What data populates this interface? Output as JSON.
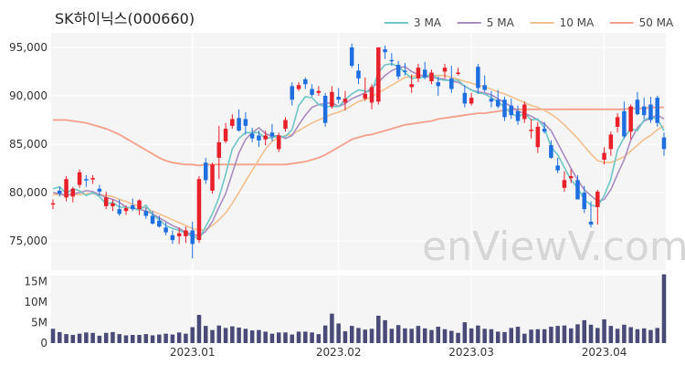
{
  "chart_data": {
    "type": "candlestick",
    "title": "SK하이닉스(000660)",
    "watermark": "enViewV.com",
    "colors": {
      "up": "#e8202a",
      "down": "#1f6fe0",
      "volume": "#4a4a78",
      "panel_bg": "#f5f5f5"
    },
    "legend": [
      {
        "name": "3 MA",
        "color": "#6fc6c6"
      },
      {
        "name": "5 MA",
        "color": "#a98cc0"
      },
      {
        "name": "10 MA",
        "color": "#f2c08e"
      },
      {
        "name": "50 MA",
        "color": "#f4a08a"
      }
    ],
    "price_axis": {
      "ticks": [
        "95,000",
        "90,000",
        "85,000",
        "80,000",
        "75,000"
      ],
      "values": [
        95000,
        90000,
        85000,
        80000,
        75000
      ],
      "range": [
        72000,
        96500
      ]
    },
    "volume_axis": {
      "ticks": [
        "15M",
        "10M",
        "5M",
        "0"
      ],
      "values": [
        15000000,
        10000000,
        5000000,
        0
      ],
      "range": [
        0,
        16500000
      ]
    },
    "x_ticks": [
      {
        "label": "2023.01",
        "index": 21
      },
      {
        "label": "2023.02",
        "index": 43
      },
      {
        "label": "2023.03",
        "index": 63
      },
      {
        "label": "2023.04",
        "index": 83
      }
    ],
    "candles": [
      [
        78800,
        79300,
        78300,
        78900,
        3500000
      ],
      [
        80200,
        80600,
        79600,
        79900,
        2700000
      ],
      [
        79500,
        81700,
        79100,
        81400,
        2200000
      ],
      [
        79600,
        80600,
        79000,
        80400,
        2000000
      ],
      [
        80800,
        82400,
        80500,
        82100,
        2300000
      ],
      [
        81400,
        81800,
        80600,
        81300,
        2600000
      ],
      [
        81400,
        81800,
        80900,
        81500,
        2500000
      ],
      [
        80400,
        80800,
        79700,
        80100,
        1800000
      ],
      [
        78600,
        80100,
        78300,
        79500,
        2500000
      ],
      [
        78600,
        79300,
        78100,
        78900,
        2700000
      ],
      [
        78300,
        79300,
        77600,
        77800,
        2200000
      ],
      [
        78100,
        78700,
        77700,
        78400,
        1900000
      ],
      [
        78700,
        79400,
        78100,
        78300,
        2000000
      ],
      [
        78300,
        79300,
        77700,
        79200,
        2000000
      ],
      [
        78100,
        78500,
        77300,
        77600,
        2200000
      ],
      [
        77600,
        78100,
        76700,
        76800,
        1900000
      ],
      [
        77100,
        77600,
        76400,
        76500,
        2100000
      ],
      [
        76400,
        76900,
        75600,
        75900,
        2300000
      ],
      [
        75600,
        76100,
        74700,
        75100,
        2100000
      ],
      [
        75500,
        76400,
        74700,
        75800,
        2600000
      ],
      [
        75500,
        76500,
        74800,
        76100,
        2300000
      ],
      [
        76100,
        77000,
        73200,
        74700,
        3900000
      ],
      [
        75100,
        81700,
        74800,
        81400,
        6900000
      ],
      [
        83100,
        83600,
        80900,
        81300,
        4200000
      ],
      [
        80200,
        83100,
        79900,
        82900,
        3200000
      ],
      [
        83600,
        86900,
        81400,
        85200,
        4300000
      ],
      [
        85300,
        87200,
        85100,
        86600,
        3700000
      ],
      [
        86900,
        88100,
        86600,
        87600,
        4100000
      ],
      [
        87700,
        88600,
        86300,
        86400,
        3800000
      ],
      [
        87600,
        88300,
        86000,
        86900,
        3500000
      ],
      [
        86100,
        86700,
        85200,
        85600,
        3100000
      ],
      [
        85900,
        86400,
        84700,
        85400,
        3200000
      ],
      [
        85500,
        86400,
        84900,
        85900,
        2800000
      ],
      [
        86200,
        87100,
        85300,
        85800,
        2300000
      ],
      [
        84500,
        86200,
        84200,
        85900,
        2600000
      ],
      [
        86600,
        87800,
        86300,
        87500,
        2600000
      ],
      [
        91000,
        91400,
        89000,
        89600,
        2100000
      ],
      [
        90700,
        91400,
        90500,
        91100,
        2800000
      ],
      [
        91700,
        91900,
        90700,
        91200,
        2800000
      ],
      [
        90700,
        91200,
        89900,
        90100,
        2600000
      ],
      [
        90300,
        91000,
        90000,
        90500,
        2200000
      ],
      [
        90000,
        90300,
        86800,
        87200,
        4300000
      ],
      [
        88900,
        91000,
        88700,
        90400,
        7200000
      ],
      [
        89900,
        90800,
        89200,
        89600,
        4800000
      ],
      [
        89300,
        90500,
        88500,
        89700,
        2900000
      ],
      [
        95000,
        95400,
        92900,
        93100,
        4200000
      ],
      [
        92600,
        93300,
        91200,
        91800,
        3700000
      ],
      [
        89700,
        91900,
        89500,
        90200,
        3300000
      ],
      [
        89300,
        91200,
        88600,
        90900,
        3500000
      ],
      [
        89400,
        95000,
        89100,
        95000,
        6700000
      ],
      [
        94800,
        95200,
        93800,
        94500,
        5600000
      ],
      [
        93700,
        94400,
        93100,
        93600,
        3500000
      ],
      [
        93200,
        93600,
        91700,
        92000,
        4400000
      ],
      [
        92600,
        93400,
        92100,
        92500,
        3600000
      ],
      [
        90900,
        92200,
        90300,
        91200,
        3500000
      ],
      [
        91800,
        93300,
        91400,
        92900,
        4200000
      ],
      [
        92700,
        93500,
        91700,
        91900,
        3600000
      ],
      [
        91500,
        92700,
        91200,
        92400,
        3200000
      ],
      [
        91400,
        92000,
        90000,
        91000,
        4000000
      ],
      [
        92500,
        93300,
        91800,
        92900,
        3400000
      ],
      [
        91800,
        93100,
        90300,
        90700,
        3000000
      ],
      [
        92300,
        92900,
        92100,
        92400,
        2500000
      ],
      [
        90300,
        91100,
        88800,
        89200,
        5100000
      ],
      [
        89200,
        90300,
        89000,
        89800,
        3600000
      ],
      [
        93000,
        93300,
        90200,
        90800,
        4300000
      ],
      [
        91100,
        92100,
        90400,
        90600,
        3500000
      ],
      [
        89700,
        90500,
        88800,
        89400,
        3400000
      ],
      [
        89600,
        90600,
        88700,
        88900,
        2800000
      ],
      [
        89600,
        89900,
        87400,
        87800,
        2700000
      ],
      [
        89000,
        89700,
        87600,
        88000,
        3700000
      ],
      [
        88400,
        89000,
        87000,
        87400,
        4000000
      ],
      [
        87600,
        89400,
        87200,
        89100,
        2300000
      ],
      [
        86500,
        87600,
        85600,
        86500,
        3300000
      ],
      [
        84700,
        87300,
        84100,
        86800,
        3400000
      ],
      [
        86600,
        87300,
        86100,
        86300,
        3400000
      ],
      [
        84900,
        85400,
        83500,
        83600,
        4000000
      ],
      [
        82800,
        83600,
        82000,
        82300,
        4200000
      ],
      [
        80500,
        82200,
        80100,
        81300,
        4300000
      ],
      [
        81500,
        82400,
        81000,
        81700,
        3600000
      ],
      [
        81300,
        81800,
        79300,
        79300,
        4600000
      ],
      [
        80000,
        80700,
        77900,
        78300,
        5600000
      ],
      [
        77000,
        79100,
        76400,
        76700,
        4500000
      ],
      [
        78500,
        80300,
        76700,
        80100,
        3700000
      ]
    ],
    "ma": {
      "3": [
        80400,
        80600,
        79900,
        80400,
        80200,
        79700,
        80000,
        79600,
        78800,
        79000,
        78500,
        78500,
        78400,
        78200,
        78700,
        77700,
        77200,
        76600,
        76300,
        76100,
        75800,
        75500,
        75200,
        76500,
        77800,
        79500,
        81900,
        84500,
        85600,
        86200,
        86200,
        86200,
        85600,
        85700,
        85800,
        85800,
        86500,
        89000,
        89900,
        89800,
        89100,
        88900,
        88900,
        88900,
        89600,
        90200,
        90600,
        90500,
        90400,
        92400,
        93200,
        93300,
        93000,
        92400,
        91800,
        91900,
        91900,
        92300,
        91700,
        91600,
        91600,
        91600,
        91000,
        90600,
        90300,
        90200,
        89800,
        89400,
        88800,
        88200,
        87800,
        88200,
        87500,
        87600,
        86700,
        84700,
        83900,
        82600,
        81300,
        80500,
        79300,
        78700,
        78600
      ],
      "5": [
        80000,
        79900,
        79700,
        79900,
        80000,
        80200,
        80100,
        79800,
        79500,
        79300,
        79000,
        78500,
        78400,
        78300,
        78100,
        77800,
        77400,
        77000,
        76600,
        76300,
        75900,
        75700,
        75500,
        76000,
        77000,
        78500,
        79900,
        82000,
        84100,
        85500,
        86200,
        86700,
        86100,
        85800,
        85900,
        85600,
        85900,
        87000,
        88000,
        88800,
        89100,
        89200,
        89300,
        88900,
        89200,
        89700,
        90000,
        90300,
        90800,
        91400,
        92100,
        92600,
        92900,
        93000,
        92500,
        92200,
        92000,
        91900,
        91800,
        91700,
        91500,
        91400,
        91000,
        90600,
        90400,
        90300,
        90100,
        89700,
        89300,
        88900,
        88400,
        88200,
        87900,
        87500,
        87100,
        86400,
        85100,
        83800,
        82500,
        81300,
        80300,
        79700,
        79100
      ],
      "10": [
        79800,
        79800,
        79700,
        79800,
        79800,
        79900,
        79900,
        79800,
        79700,
        79600,
        79300,
        79100,
        78800,
        78600,
        78400,
        78100,
        77800,
        77500,
        77200,
        76900,
        76600,
        76300,
        76100,
        76200,
        76600,
        77200,
        77900,
        78900,
        80000,
        81200,
        82300,
        83400,
        84500,
        85300,
        85700,
        85900,
        86000,
        86400,
        86800,
        87200,
        87500,
        87800,
        88100,
        88300,
        88600,
        89000,
        89400,
        89600,
        89900,
        90300,
        90700,
        91100,
        91500,
        91900,
        92000,
        92100,
        92100,
        92100,
        92100,
        92100,
        91900,
        91700,
        91500,
        91300,
        91100,
        90900,
        90700,
        90400,
        90200,
        89900,
        89600,
        89300,
        89000,
        88800,
        88500,
        88100,
        87600,
        87000,
        86300,
        85600,
        84800,
        84000,
        83300
      ],
      "50": [
        87500,
        87500,
        87500,
        87400,
        87300,
        87200,
        87000,
        86800,
        86600,
        86300,
        86000,
        85600,
        85200,
        84800,
        84400,
        84000,
        83600,
        83300,
        83100,
        83000,
        82900,
        82900,
        82800,
        82900,
        82900,
        82900,
        82900,
        82900,
        82900,
        82900,
        82900,
        82900,
        82900,
        82900,
        82900,
        82900,
        83000,
        83100,
        83200,
        83400,
        83600,
        83900,
        84300,
        84700,
        85100,
        85500,
        85700,
        85900,
        86000,
        86200,
        86400,
        86600,
        86800,
        87000,
        87100,
        87200,
        87300,
        87400,
        87600,
        87700,
        87800,
        87900,
        88000,
        88100,
        88200,
        88200,
        88300,
        88400,
        88500,
        88600,
        88600,
        88600,
        88600,
        88600,
        88600,
        88600,
        88600,
        88600,
        88600,
        88600,
        88600,
        88600,
        88600
      ]
    },
    "extra_candles": [
      [
        83400,
        84700,
        82900,
        84100,
        5800000
      ],
      [
        84500,
        86300,
        83800,
        86000,
        4200000
      ],
      [
        86800,
        88200,
        86200,
        87800,
        3500000
      ],
      [
        88400,
        89400,
        85600,
        85800,
        4500000
      ],
      [
        86300,
        89100,
        85500,
        88900,
        3900000
      ],
      [
        89600,
        90400,
        88000,
        88100,
        3400000
      ],
      [
        88900,
        89800,
        87600,
        88000,
        3600000
      ],
      [
        89100,
        89900,
        87200,
        87500,
        3200000
      ],
      [
        89800,
        90000,
        86800,
        87200,
        3700000
      ],
      [
        85700,
        86200,
        83800,
        84500,
        16800000
      ]
    ],
    "extra_ma": {
      "3": [
        79700,
        81400,
        84400,
        85700,
        86600,
        86400,
        87500,
        87800,
        87600,
        86400
      ],
      "5": [
        79300,
        80300,
        81900,
        83400,
        85400,
        86700,
        87400,
        87700,
        88000,
        87600
      ],
      "10": [
        83100,
        83100,
        83400,
        83700,
        84300,
        84900,
        85500,
        85900,
        86500,
        86900
      ],
      "50": [
        88600,
        88600,
        88600,
        88600,
        88700,
        88700,
        88700,
        88800,
        88800,
        88800
      ]
    }
  }
}
